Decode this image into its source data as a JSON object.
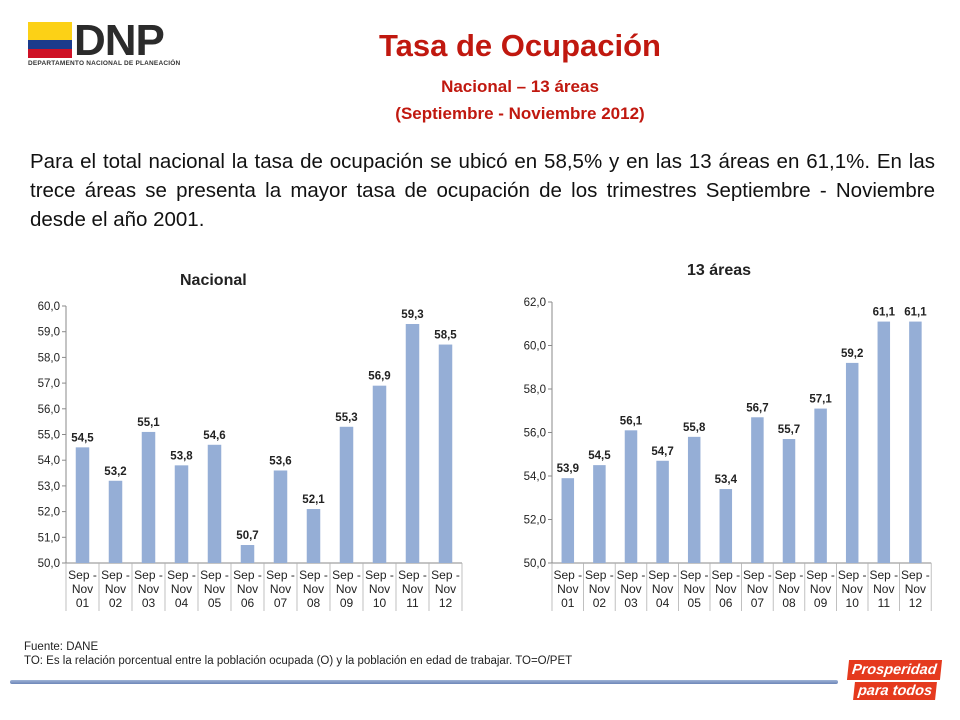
{
  "logo": {
    "text": "DNP",
    "subtitle": "DEPARTAMENTO NACIONAL DE PLANEACIÓN"
  },
  "header": {
    "title": "Tasa de Ocupación",
    "subtitle1": "Nacional – 13 áreas",
    "subtitle2": "(Septiembre - Noviembre 2012)"
  },
  "paragraph": "Para el total nacional la tasa de ocupación se ubicó en 58,5% y en las 13 áreas en 61,1%. En las trece áreas se presenta la mayor tasa de ocupación de los trimestres Septiembre - Noviembre desde el año 2001.",
  "chart_data": [
    {
      "type": "bar",
      "title": "Nacional",
      "categories": [
        [
          "Sep -",
          "Nov",
          "01"
        ],
        [
          "Sep -",
          "Nov",
          "02"
        ],
        [
          "Sep -",
          "Nov",
          "03"
        ],
        [
          "Sep -",
          "Nov",
          "04"
        ],
        [
          "Sep -",
          "Nov",
          "05"
        ],
        [
          "Sep -",
          "Nov",
          "06"
        ],
        [
          "Sep -",
          "Nov",
          "07"
        ],
        [
          "Sep -",
          "Nov",
          "08"
        ],
        [
          "Sep -",
          "Nov",
          "09"
        ],
        [
          "Sep -",
          "Nov",
          "10"
        ],
        [
          "Sep -",
          "Nov",
          "11"
        ],
        [
          "Sep -",
          "Nov",
          "12"
        ]
      ],
      "values": [
        54.5,
        53.2,
        55.1,
        53.8,
        54.6,
        50.7,
        53.6,
        52.1,
        55.3,
        56.9,
        59.3,
        58.5
      ],
      "value_labels": [
        "54,5",
        "53,2",
        "55,1",
        "53,8",
        "54,6",
        "50,7",
        "53,6",
        "52,1",
        "55,3",
        "56,9",
        "59,3",
        "58,5"
      ],
      "ylim": [
        50,
        60
      ],
      "yticks": [
        "50,0",
        "51,0",
        "52,0",
        "53,0",
        "54,0",
        "55,0",
        "56,0",
        "57,0",
        "58,0",
        "59,0",
        "60,0"
      ],
      "color": "#95AED6"
    },
    {
      "type": "bar",
      "title": "13 áreas",
      "categories": [
        [
          "Sep -",
          "Nov",
          "01"
        ],
        [
          "Sep -",
          "Nov",
          "02"
        ],
        [
          "Sep -",
          "Nov",
          "03"
        ],
        [
          "Sep -",
          "Nov",
          "04"
        ],
        [
          "Sep -",
          "Nov",
          "05"
        ],
        [
          "Sep -",
          "Nov",
          "06"
        ],
        [
          "Sep -",
          "Nov",
          "07"
        ],
        [
          "Sep -",
          "Nov",
          "08"
        ],
        [
          "Sep -",
          "Nov",
          "09"
        ],
        [
          "Sep -",
          "Nov",
          "10"
        ],
        [
          "Sep -",
          "Nov",
          "11"
        ],
        [
          "Sep -",
          "Nov",
          "12"
        ]
      ],
      "values": [
        53.9,
        54.5,
        56.1,
        54.7,
        55.8,
        53.4,
        56.7,
        55.7,
        57.1,
        59.2,
        61.1,
        61.1
      ],
      "value_labels": [
        "53,9",
        "54,5",
        "56,1",
        "54,7",
        "55,8",
        "53,4",
        "56,7",
        "55,7",
        "57,1",
        "59,2",
        "61,1",
        "61,1"
      ],
      "ylim": [
        50,
        62
      ],
      "yticks": [
        "50,0",
        "52,0",
        "54,0",
        "56,0",
        "58,0",
        "60,0",
        "62,0"
      ],
      "color": "#95AED6"
    }
  ],
  "footer": {
    "source": "Fuente: DANE",
    "note": "TO: Es la relación porcentual entre la población ocupada (O) y la población  en edad de trabajar. TO=O/PET"
  },
  "badge": {
    "line1": "Prosperidad",
    "line2": "para todos"
  }
}
